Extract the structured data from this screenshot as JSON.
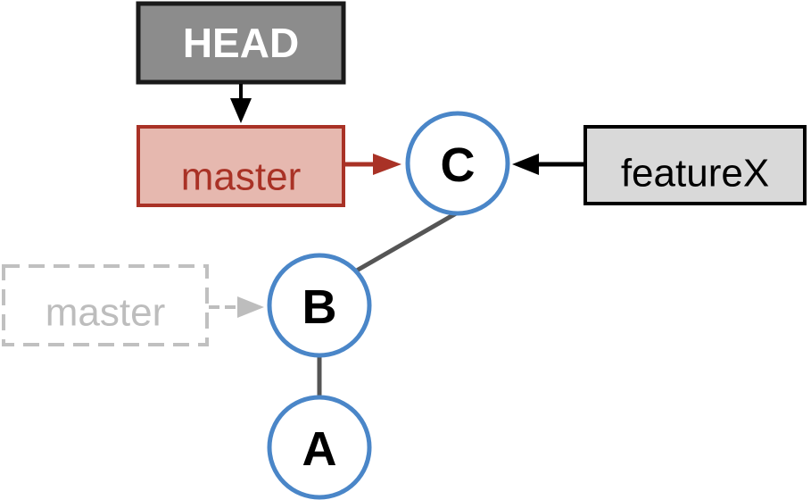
{
  "colors": {
    "head_fill": "#8c8c8c",
    "head_stroke": "#1a1a1a",
    "head_text": "#ffffff",
    "master_fill": "#e6b8af",
    "master_stroke": "#a93226",
    "master_text": "#a93226",
    "old_master_stroke": "#c0c0c0",
    "old_master_text": "#bdbdbd",
    "feature_fill": "#d9d9d9",
    "feature_stroke": "#000000",
    "feature_text": "#000000",
    "commit_stroke": "#4a86c8",
    "commit_fill": "#ffffff",
    "commit_text": "#000000",
    "edge": "#555555",
    "arrow_dark": "#000000",
    "arrow_red": "#a93226",
    "arrow_gray": "#bdbdbd"
  },
  "refs": {
    "head": "HEAD",
    "master": "master",
    "old_master": "master",
    "featureX": "featureX"
  },
  "commits": {
    "a": "A",
    "b": "B",
    "c": "C"
  }
}
